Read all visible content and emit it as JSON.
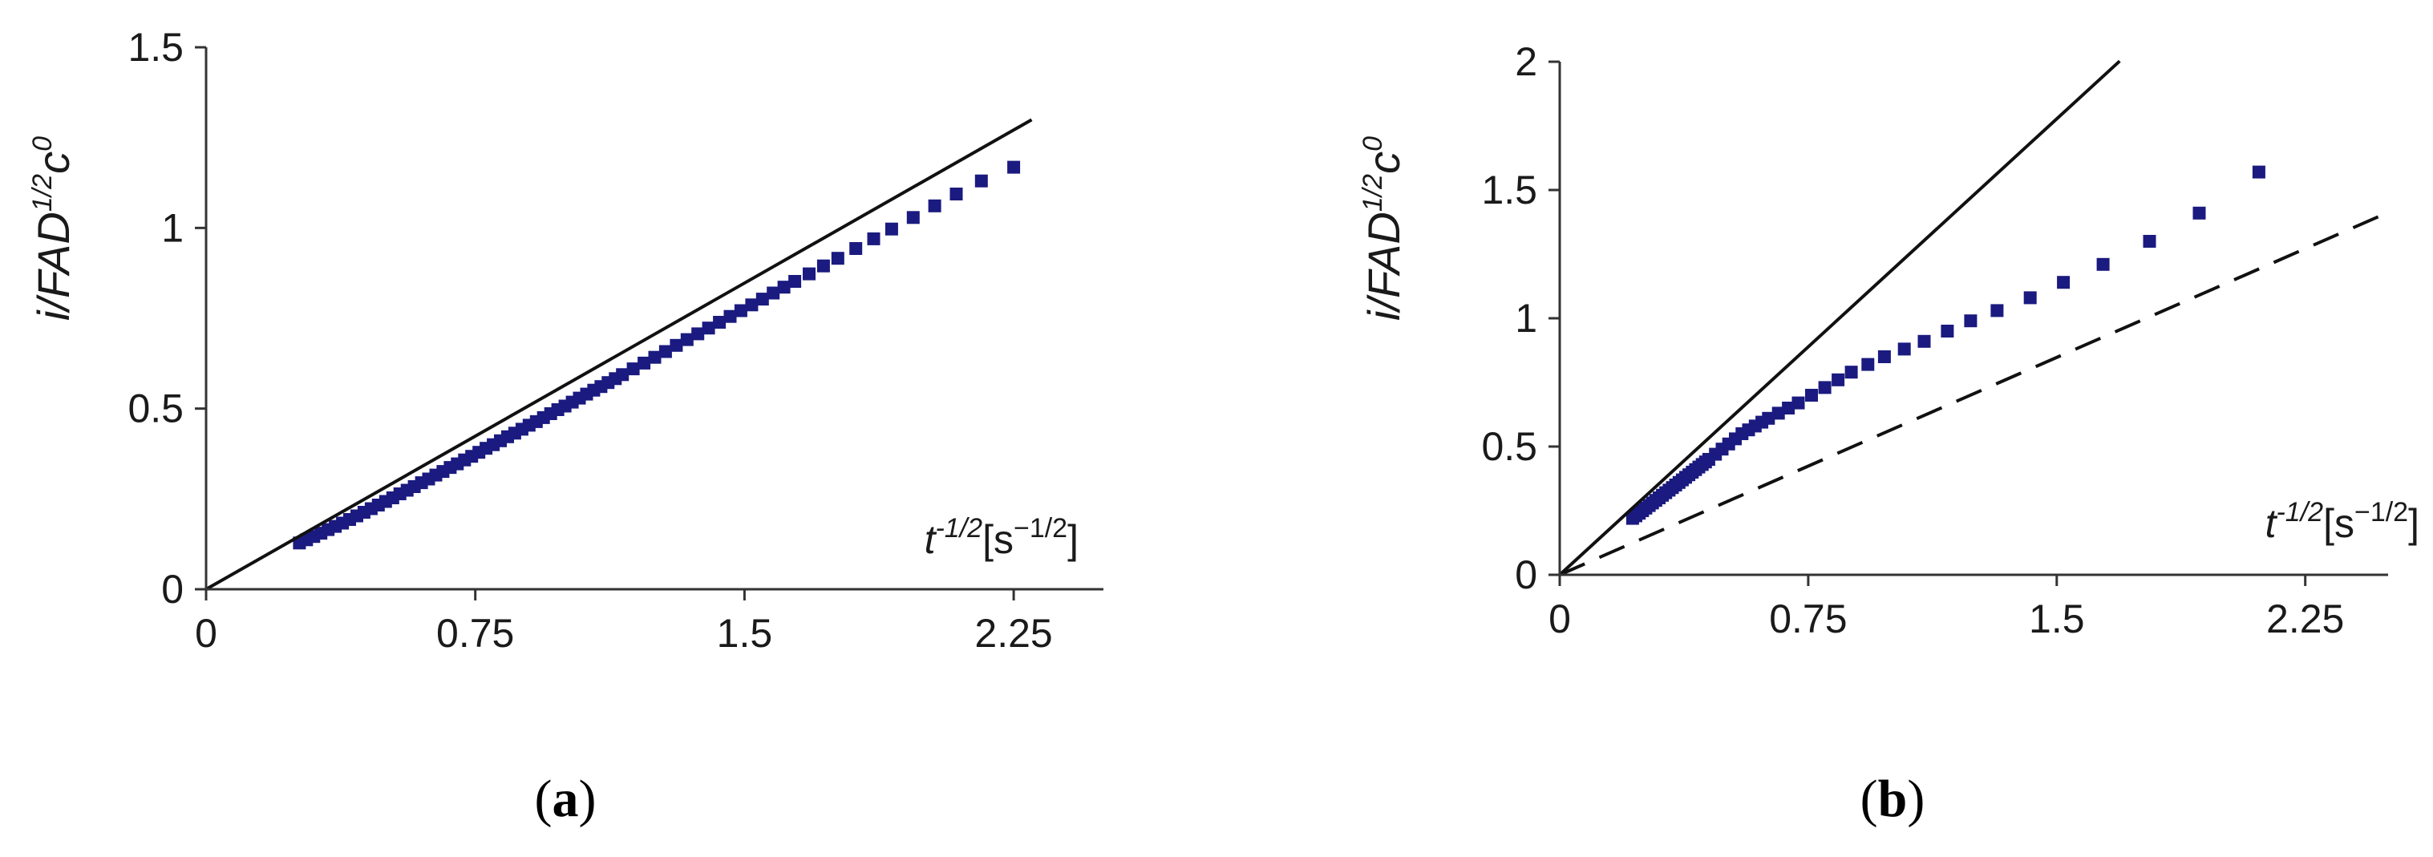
{
  "colors": {
    "markers": "#1a1a80",
    "axes": "#333333",
    "lines": "#111111"
  },
  "chart_data": [
    {
      "type": "scatter",
      "panel_label": "(a)",
      "ylabel": {
        "base": "i/FAD",
        "sup": "1/2",
        "c": "c",
        "csup": "0"
      },
      "xlabel": {
        "t": "t",
        "tsup": "-1/2",
        "unit_open": "[s",
        "unit_sup": "−1/2",
        "unit_close": "]"
      },
      "xlim": [
        0,
        2.5
      ],
      "ylim": [
        0,
        1.5
      ],
      "x_ticks": [
        0,
        0.75,
        1.5,
        2.25
      ],
      "x_tick_labels": [
        "0",
        "0.75",
        "1.5",
        "2.25"
      ],
      "y_ticks": [
        0,
        0.5,
        1,
        1.5
      ],
      "y_tick_labels": [
        "0",
        "0.5",
        "1",
        "1.5"
      ],
      "reference_lines": [
        {
          "style": "solid",
          "slope": 0.565,
          "x_end": 2.3
        }
      ],
      "series": [
        {
          "points": [
            [
              0.26,
              0.128
            ],
            [
              0.28,
              0.137
            ],
            [
              0.3,
              0.146
            ],
            [
              0.32,
              0.155
            ],
            [
              0.34,
              0.165
            ],
            [
              0.36,
              0.174
            ],
            [
              0.38,
              0.183
            ],
            [
              0.4,
              0.193
            ],
            [
              0.42,
              0.203
            ],
            [
              0.44,
              0.213
            ],
            [
              0.46,
              0.223
            ],
            [
              0.48,
              0.233
            ],
            [
              0.5,
              0.243
            ],
            [
              0.52,
              0.253
            ],
            [
              0.54,
              0.264
            ],
            [
              0.56,
              0.274
            ],
            [
              0.58,
              0.284
            ],
            [
              0.6,
              0.295
            ],
            [
              0.62,
              0.305
            ],
            [
              0.64,
              0.316
            ],
            [
              0.66,
              0.326
            ],
            [
              0.68,
              0.337
            ],
            [
              0.7,
              0.347
            ],
            [
              0.72,
              0.358
            ],
            [
              0.74,
              0.368
            ],
            [
              0.76,
              0.379
            ],
            [
              0.78,
              0.39
            ],
            [
              0.8,
              0.4
            ],
            [
              0.82,
              0.411
            ],
            [
              0.84,
              0.422
            ],
            [
              0.86,
              0.432
            ],
            [
              0.88,
              0.443
            ],
            [
              0.9,
              0.454
            ],
            [
              0.92,
              0.464
            ],
            [
              0.94,
              0.475
            ],
            [
              0.96,
              0.486
            ],
            [
              0.98,
              0.497
            ],
            [
              1.0,
              0.507
            ],
            [
              1.02,
              0.518
            ],
            [
              1.04,
              0.529
            ],
            [
              1.06,
              0.54
            ],
            [
              1.08,
              0.551
            ],
            [
              1.1,
              0.561
            ],
            [
              1.12,
              0.572
            ],
            [
              1.14,
              0.583
            ],
            [
              1.16,
              0.594
            ],
            [
              1.19,
              0.61
            ],
            [
              1.22,
              0.626
            ],
            [
              1.25,
              0.642
            ],
            [
              1.28,
              0.658
            ],
            [
              1.31,
              0.675
            ],
            [
              1.34,
              0.691
            ],
            [
              1.37,
              0.707
            ],
            [
              1.4,
              0.723
            ],
            [
              1.43,
              0.739
            ],
            [
              1.46,
              0.755
            ],
            [
              1.49,
              0.771
            ],
            [
              1.52,
              0.787
            ],
            [
              1.55,
              0.803
            ],
            [
              1.58,
              0.82
            ],
            [
              1.61,
              0.836
            ],
            [
              1.64,
              0.852
            ],
            [
              1.68,
              0.873
            ],
            [
              1.72,
              0.895
            ],
            [
              1.76,
              0.916
            ],
            [
              1.81,
              0.943
            ],
            [
              1.86,
              0.97
            ],
            [
              1.91,
              0.997
            ],
            [
              1.97,
              1.029
            ],
            [
              2.03,
              1.061
            ],
            [
              2.09,
              1.094
            ],
            [
              2.16,
              1.13
            ],
            [
              2.25,
              1.168
            ]
          ]
        }
      ]
    },
    {
      "type": "scatter",
      "panel_label": "(b)",
      "ylabel": {
        "base": "i/FAD",
        "sup": "1/2",
        "c": "c",
        "csup": "0"
      },
      "xlabel": {
        "t": "t",
        "tsup": "-1/2",
        "unit_open": "[s",
        "unit_sup": "−1/2",
        "unit_close": "]"
      },
      "xlim": [
        0,
        2.5
      ],
      "ylim": [
        0,
        2
      ],
      "x_ticks": [
        0,
        0.75,
        1.5,
        2.25
      ],
      "x_tick_labels": [
        "0",
        "0.75",
        "1.5",
        "2.25"
      ],
      "y_ticks": [
        0,
        0.5,
        1,
        1.5,
        2
      ],
      "y_tick_labels": [
        "0",
        "0.5",
        "1",
        "1.5",
        "2"
      ],
      "reference_lines": [
        {
          "style": "solid",
          "slope": 1.185,
          "x_end": 1.69
        },
        {
          "style": "dashed",
          "slope": 0.565,
          "x_end": 2.5
        }
      ],
      "series": [
        {
          "points": [
            [
              0.22,
              0.22
            ],
            [
              0.23,
              0.23
            ],
            [
              0.24,
              0.24
            ],
            [
              0.25,
              0.25
            ],
            [
              0.26,
              0.26
            ],
            [
              0.27,
              0.27
            ],
            [
              0.28,
              0.28
            ],
            [
              0.29,
              0.29
            ],
            [
              0.3,
              0.3
            ],
            [
              0.31,
              0.31
            ],
            [
              0.32,
              0.32
            ],
            [
              0.33,
              0.33
            ],
            [
              0.34,
              0.34
            ],
            [
              0.35,
              0.35
            ],
            [
              0.36,
              0.36
            ],
            [
              0.37,
              0.37
            ],
            [
              0.38,
              0.38
            ],
            [
              0.39,
              0.39
            ],
            [
              0.4,
              0.4
            ],
            [
              0.41,
              0.41
            ],
            [
              0.42,
              0.42
            ],
            [
              0.43,
              0.43
            ],
            [
              0.44,
              0.44
            ],
            [
              0.45,
              0.45
            ],
            [
              0.47,
              0.47
            ],
            [
              0.49,
              0.49
            ],
            [
              0.51,
              0.51
            ],
            [
              0.53,
              0.53
            ],
            [
              0.55,
              0.55
            ],
            [
              0.57,
              0.565
            ],
            [
              0.59,
              0.58
            ],
            [
              0.61,
              0.595
            ],
            [
              0.63,
              0.61
            ],
            [
              0.66,
              0.63
            ],
            [
              0.69,
              0.65
            ],
            [
              0.72,
              0.67
            ],
            [
              0.76,
              0.7
            ],
            [
              0.8,
              0.73
            ],
            [
              0.84,
              0.76
            ],
            [
              0.88,
              0.79
            ],
            [
              0.93,
              0.82
            ],
            [
              0.98,
              0.85
            ],
            [
              1.04,
              0.88
            ],
            [
              1.1,
              0.91
            ],
            [
              1.17,
              0.95
            ],
            [
              1.24,
              0.99
            ],
            [
              1.32,
              1.03
            ],
            [
              1.42,
              1.08
            ],
            [
              1.52,
              1.14
            ],
            [
              1.64,
              1.21
            ],
            [
              1.78,
              1.3
            ],
            [
              1.93,
              1.41
            ],
            [
              2.11,
              1.57
            ]
          ]
        }
      ]
    }
  ]
}
